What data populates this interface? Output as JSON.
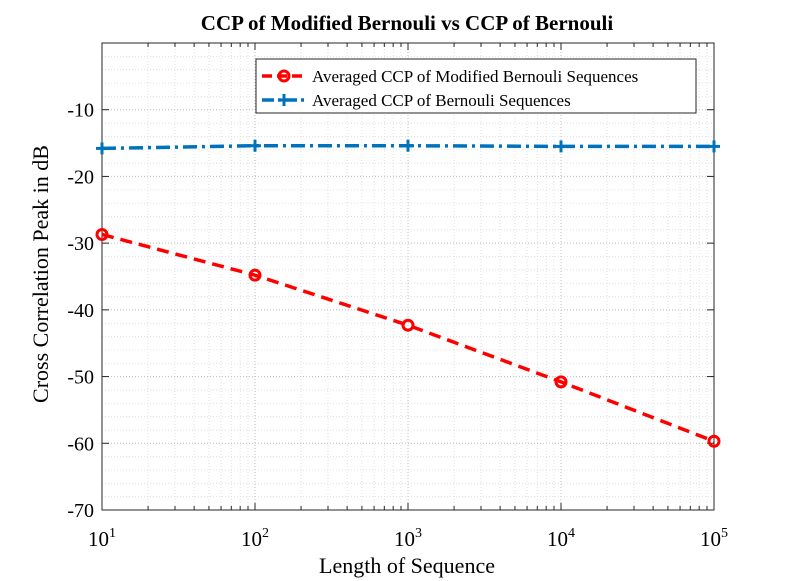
{
  "chart_data": {
    "type": "line",
    "title": "CCP of Modified Bernouli vs CCP of Bernouli",
    "xlabel": "Length of Sequence",
    "ylabel": "Cross Correlation Peak in dB",
    "xscale": "log",
    "x": [
      10,
      100,
      1000,
      10000,
      100000
    ],
    "xlim": [
      10,
      100000
    ],
    "ylim": [
      -70,
      0
    ],
    "y_ticks": [
      -70,
      -60,
      -50,
      -40,
      -30,
      -20,
      -10
    ],
    "y_tick_labels": [
      "-70",
      "-60",
      "-50",
      "-40",
      "-30",
      "-20",
      "-10"
    ],
    "x_tick_labels": [
      {
        "base": "10",
        "exp": "1"
      },
      {
        "base": "10",
        "exp": "2"
      },
      {
        "base": "10",
        "exp": "3"
      },
      {
        "base": "10",
        "exp": "4"
      },
      {
        "base": "10",
        "exp": "5"
      }
    ],
    "grid": true,
    "legend_position": "top-right",
    "series": [
      {
        "name": "Averaged CCP of Modified Bernouli Sequences",
        "color": "#ff0000",
        "line_style": "dashed",
        "marker": "circle",
        "values": [
          -28.7,
          -34.8,
          -42.3,
          -50.8,
          -59.7
        ]
      },
      {
        "name": "Averaged CCP of  Bernouli Sequences",
        "color": "#0072bd",
        "line_style": "dash-dot",
        "marker": "plus",
        "values": [
          -15.8,
          -15.4,
          -15.4,
          -15.5,
          -15.5
        ]
      }
    ]
  }
}
